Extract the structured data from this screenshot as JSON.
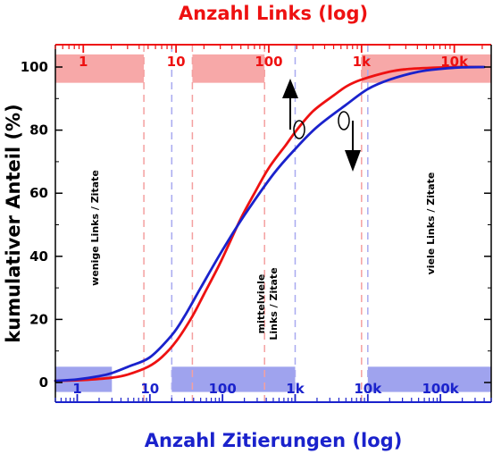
{
  "chart_data": {
    "type": "line",
    "title": "",
    "ylabel": "kumulativer Anteil (%)",
    "ylim": [
      0,
      100
    ],
    "y_ticks": [
      0,
      20,
      40,
      60,
      80,
      100
    ],
    "grid": false,
    "top_axis": {
      "label": "Anzahl Links (log)",
      "scale": "log",
      "range": [
        0.5,
        25000
      ],
      "ticks": [
        {
          "value": 1,
          "label": "1"
        },
        {
          "value": 10,
          "label": "10"
        },
        {
          "value": 100,
          "label": "100"
        },
        {
          "value": 1000,
          "label": "1k"
        },
        {
          "value": 10000,
          "label": "10k"
        }
      ],
      "color": "#ee1111"
    },
    "bottom_axis": {
      "label": "Anzahl Zitierungen (log)",
      "scale": "log",
      "range": [
        0.5,
        500000
      ],
      "ticks": [
        {
          "value": 1,
          "label": "1"
        },
        {
          "value": 10,
          "label": "10"
        },
        {
          "value": 100,
          "label": "100"
        },
        {
          "value": 1000,
          "label": "1k"
        },
        {
          "value": 10000,
          "label": "10k"
        },
        {
          "value": 100000,
          "label": "100k"
        }
      ],
      "color": "#1a22cc"
    },
    "series": [
      {
        "axis": "top",
        "color": "#ee1111",
        "x": [
          0.5,
          1,
          2,
          3,
          5,
          7,
          10,
          15,
          20,
          30,
          50,
          70,
          100,
          150,
          200,
          300,
          500,
          700,
          1000,
          2000,
          3000,
          5000,
          10000,
          20000
        ],
        "y": [
          0.5,
          0.8,
          1.5,
          2.5,
          5,
          8,
          13,
          21,
          28,
          38,
          52,
          60,
          68,
          75,
          80,
          86,
          91,
          94,
          96,
          98.5,
          99.3,
          99.7,
          100,
          100
        ]
      },
      {
        "axis": "bottom",
        "color": "#1a22cc",
        "x": [
          0.5,
          1,
          2,
          3,
          5,
          10,
          20,
          30,
          50,
          100,
          200,
          500,
          1000,
          2000,
          5000,
          10000,
          20000,
          50000,
          100000,
          200000,
          400000
        ],
        "y": [
          0.5,
          1,
          2,
          3,
          5,
          8,
          15,
          21,
          30,
          42,
          53,
          66,
          74,
          81,
          88,
          93,
          96,
          98.5,
          99.4,
          99.9,
          100
        ]
      }
    ],
    "shaded_regions": [
      {
        "axis": "top",
        "x0": 0.5,
        "x1": 4.5,
        "y0": 95,
        "y1": 104,
        "color": "#f7a8a8"
      },
      {
        "axis": "top",
        "x0": 15,
        "x1": 90,
        "y0": 95,
        "y1": 104,
        "color": "#f7a8a8"
      },
      {
        "axis": "top",
        "x0": 1000,
        "x1": 25000,
        "y0": 95,
        "y1": 104,
        "color": "#f7a8a8"
      },
      {
        "axis": "bottom",
        "x0": 0.5,
        "x1": 3,
        "y0": -3,
        "y1": 5,
        "color": "#9fa3ee"
      },
      {
        "axis": "bottom",
        "x0": 20,
        "x1": 1000,
        "y0": -3,
        "y1": 5,
        "color": "#9fa3ee"
      },
      {
        "axis": "bottom",
        "x0": 10000,
        "x1": 500000,
        "y0": -3,
        "y1": 5,
        "color": "#9fa3ee"
      }
    ],
    "dashed_lines": [
      {
        "axis": "top",
        "x": 4.5,
        "color": "#f4a0a0"
      },
      {
        "axis": "top",
        "x": 15,
        "color": "#f4a0a0"
      },
      {
        "axis": "top",
        "x": 90,
        "color": "#f4a0a0"
      },
      {
        "axis": "top",
        "x": 1000,
        "color": "#f4a0a0"
      },
      {
        "axis": "bottom",
        "x": 20,
        "color": "#a8aaf0"
      },
      {
        "axis": "bottom",
        "x": 1000,
        "color": "#a8aaf0"
      },
      {
        "axis": "bottom",
        "x": 10000,
        "color": "#a8aaf0"
      }
    ],
    "annotations": [
      {
        "name": "region-label-low",
        "text": "wenige Links / Zitate"
      },
      {
        "name": "region-label-mid-line1",
        "text": "mittelviele"
      },
      {
        "name": "region-label-mid-line2",
        "text": "Links / Zitate"
      },
      {
        "name": "region-label-high",
        "text": "viele Links / Zitate"
      }
    ]
  }
}
